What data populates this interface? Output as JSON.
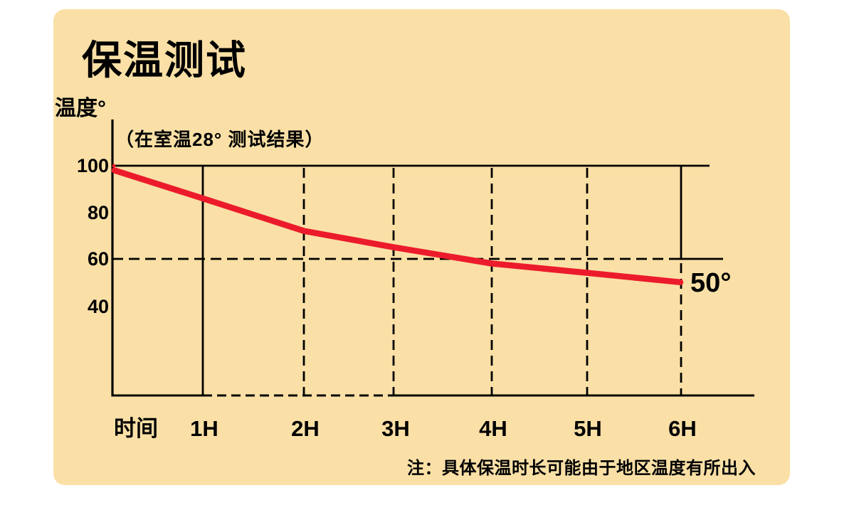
{
  "colors": {
    "page_background": "#FFFFFF",
    "card_background": "#FAE0A6",
    "ink": "#000000",
    "curve_red": "#EC1B2C"
  },
  "chart_data": {
    "type": "line",
    "title": "保温测试",
    "subtitle": "（在室温28° 测试结果）",
    "ylabel": "温度°",
    "xlabel": "时间",
    "x_hours": [
      0,
      1,
      2,
      3,
      4,
      5,
      6
    ],
    "x_tick_labels": [
      "1H",
      "2H",
      "3H",
      "4H",
      "5H",
      "6H"
    ],
    "y_tick_labels": [
      "100",
      "80",
      "60",
      "40"
    ],
    "yticks": [
      100,
      80,
      60,
      40
    ],
    "ylim": [
      30,
      105
    ],
    "series": [
      {
        "values": [
          98,
          86,
          72,
          65,
          58,
          54,
          50
        ]
      }
    ],
    "end_value_label": "50°",
    "note": "注：具体保温时长可能由于地区温度有所出入",
    "gridlines": {
      "horizontal_solid_at": 100,
      "horizontal_dashed_at": 60,
      "vertical_solid_at": [
        "1H"
      ],
      "vertical_dashed_at": [
        "2H",
        "3H",
        "4H",
        "5H"
      ],
      "vertical_6H": "solid above 60, dashed below",
      "legend": "none"
    }
  }
}
